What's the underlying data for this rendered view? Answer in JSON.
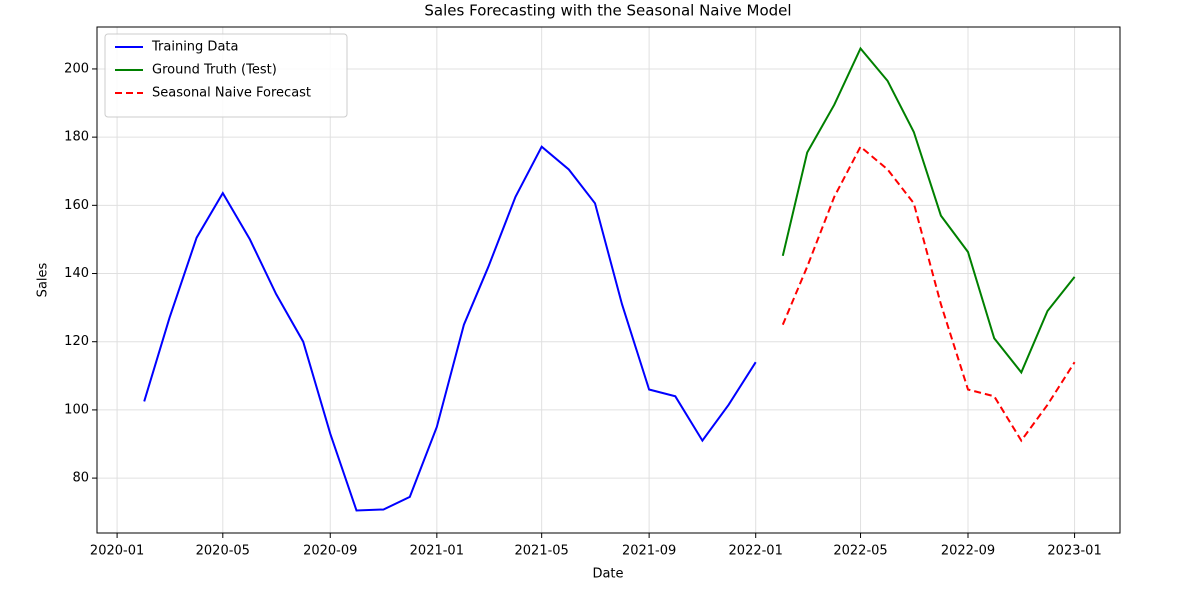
{
  "chart_data": {
    "type": "line",
    "title": "Sales Forecasting with the Seasonal Naive Model",
    "x_label": "Date",
    "y_label": "Sales",
    "series": [
      {
        "name": "Training Data",
        "color": "#0000ff",
        "linestyle": "solid",
        "x": [
          "2020-02",
          "2020-03",
          "2020-04",
          "2020-05",
          "2020-06",
          "2020-07",
          "2020-08",
          "2020-09",
          "2020-10",
          "2020-11",
          "2020-12",
          "2021-01",
          "2021-02",
          "2021-03",
          "2021-04",
          "2021-05",
          "2021-06",
          "2021-07",
          "2021-08",
          "2021-09",
          "2021-10",
          "2021-11",
          "2021-12",
          "2022-01"
        ],
        "values": [
          102.5,
          127,
          150.5,
          163.6,
          150,
          134,
          120,
          93,
          70.5,
          70.8,
          74.5,
          95,
          125,
          142,
          162.5,
          177.2,
          170.5,
          160.6,
          131,
          106,
          104,
          91,
          101.5,
          114
        ]
      },
      {
        "name": "Ground Truth (Test)",
        "color": "#008000",
        "linestyle": "solid",
        "x": [
          "2022-02",
          "2022-03",
          "2022-04",
          "2022-05",
          "2022-06",
          "2022-07",
          "2022-08",
          "2022-09",
          "2022-10",
          "2022-11",
          "2022-12",
          "2023-01"
        ],
        "values": [
          145.2,
          175.5,
          189.5,
          206,
          196.5,
          181.5,
          157,
          146.3,
          121,
          111,
          129,
          139
        ]
      },
      {
        "name": "Seasonal Naive Forecast",
        "color": "#ff0000",
        "linestyle": "dashed",
        "x": [
          "2022-02",
          "2022-03",
          "2022-04",
          "2022-05",
          "2022-06",
          "2022-07",
          "2022-08",
          "2022-09",
          "2022-10",
          "2022-11",
          "2022-12",
          "2023-01"
        ],
        "values": [
          125,
          142,
          162.5,
          177.2,
          170.5,
          160.6,
          131,
          106,
          104,
          91,
          101.5,
          114
        ]
      }
    ],
    "xlim": [
      "2019-12-09",
      "2023-02-22"
    ],
    "xticks": [
      "2020-01",
      "2020-05",
      "2020-09",
      "2021-01",
      "2021-05",
      "2021-09",
      "2022-01",
      "2022-05",
      "2022-09",
      "2023-01"
    ],
    "ylim": [
      63.9,
      212.3
    ],
    "yticks": [
      80,
      100,
      120,
      140,
      160,
      180,
      200
    ],
    "grid": true,
    "legend": "upper left"
  }
}
